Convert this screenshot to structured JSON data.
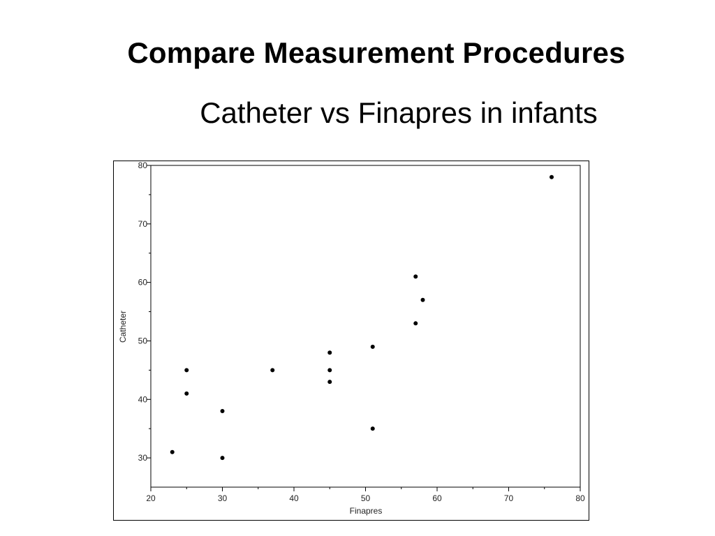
{
  "slide": {
    "title": "Compare Measurement Procedures",
    "subtitle": "Catheter vs Finapres in infants"
  },
  "chart_data": {
    "type": "scatter",
    "xlabel": "Finapres",
    "ylabel": "Catheter",
    "xlim": [
      20,
      80
    ],
    "ylim": [
      25,
      80
    ],
    "xticks": [
      20,
      30,
      40,
      50,
      60,
      70,
      80
    ],
    "yticks": [
      30,
      40,
      50,
      60,
      70,
      80
    ],
    "grid": false,
    "marker_color": "#000000",
    "points": [
      {
        "x": 23,
        "y": 31
      },
      {
        "x": 25,
        "y": 41
      },
      {
        "x": 25,
        "y": 45
      },
      {
        "x": 30,
        "y": 30
      },
      {
        "x": 30,
        "y": 38
      },
      {
        "x": 37,
        "y": 45
      },
      {
        "x": 45,
        "y": 43
      },
      {
        "x": 45,
        "y": 45
      },
      {
        "x": 45,
        "y": 48
      },
      {
        "x": 51,
        "y": 35
      },
      {
        "x": 51,
        "y": 49
      },
      {
        "x": 57,
        "y": 53
      },
      {
        "x": 57,
        "y": 61
      },
      {
        "x": 58,
        "y": 57
      },
      {
        "x": 76,
        "y": 78
      }
    ]
  }
}
